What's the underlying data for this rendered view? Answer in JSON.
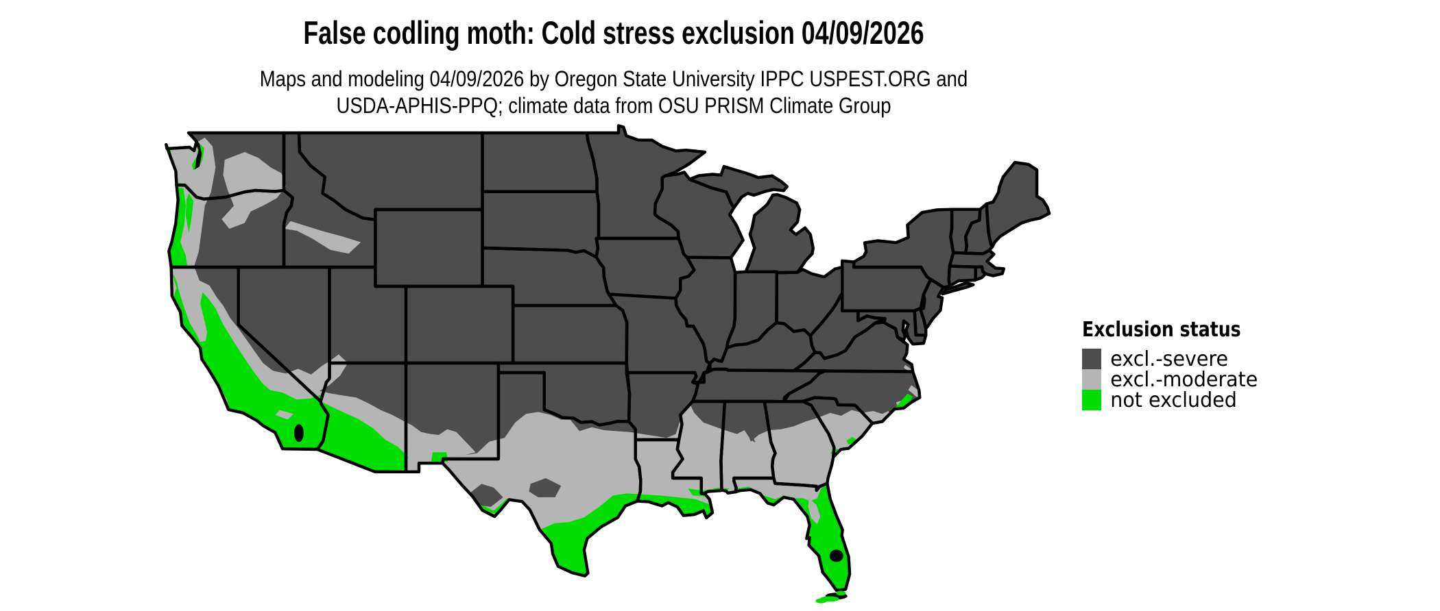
{
  "title": "False codling moth: Cold stress exclusion 04/09/2026",
  "subtitle_line1": "Maps and modeling 04/09/2026 by Oregon State University IPPC USPEST.ORG and",
  "subtitle_line2": "USDA-APHIS-PPQ; climate data from OSU PRISM Climate Group",
  "legend": {
    "title": "Exclusion status",
    "items": [
      {
        "label": "excl.-severe",
        "color": "#4d4d4d"
      },
      {
        "label": "excl.-moderate",
        "color": "#b5b5b5"
      },
      {
        "label": "not excluded",
        "color": "#00dd00"
      }
    ]
  },
  "map": {
    "background": "#ffffff",
    "border_color": "#000000",
    "water_color": "#000000"
  }
}
